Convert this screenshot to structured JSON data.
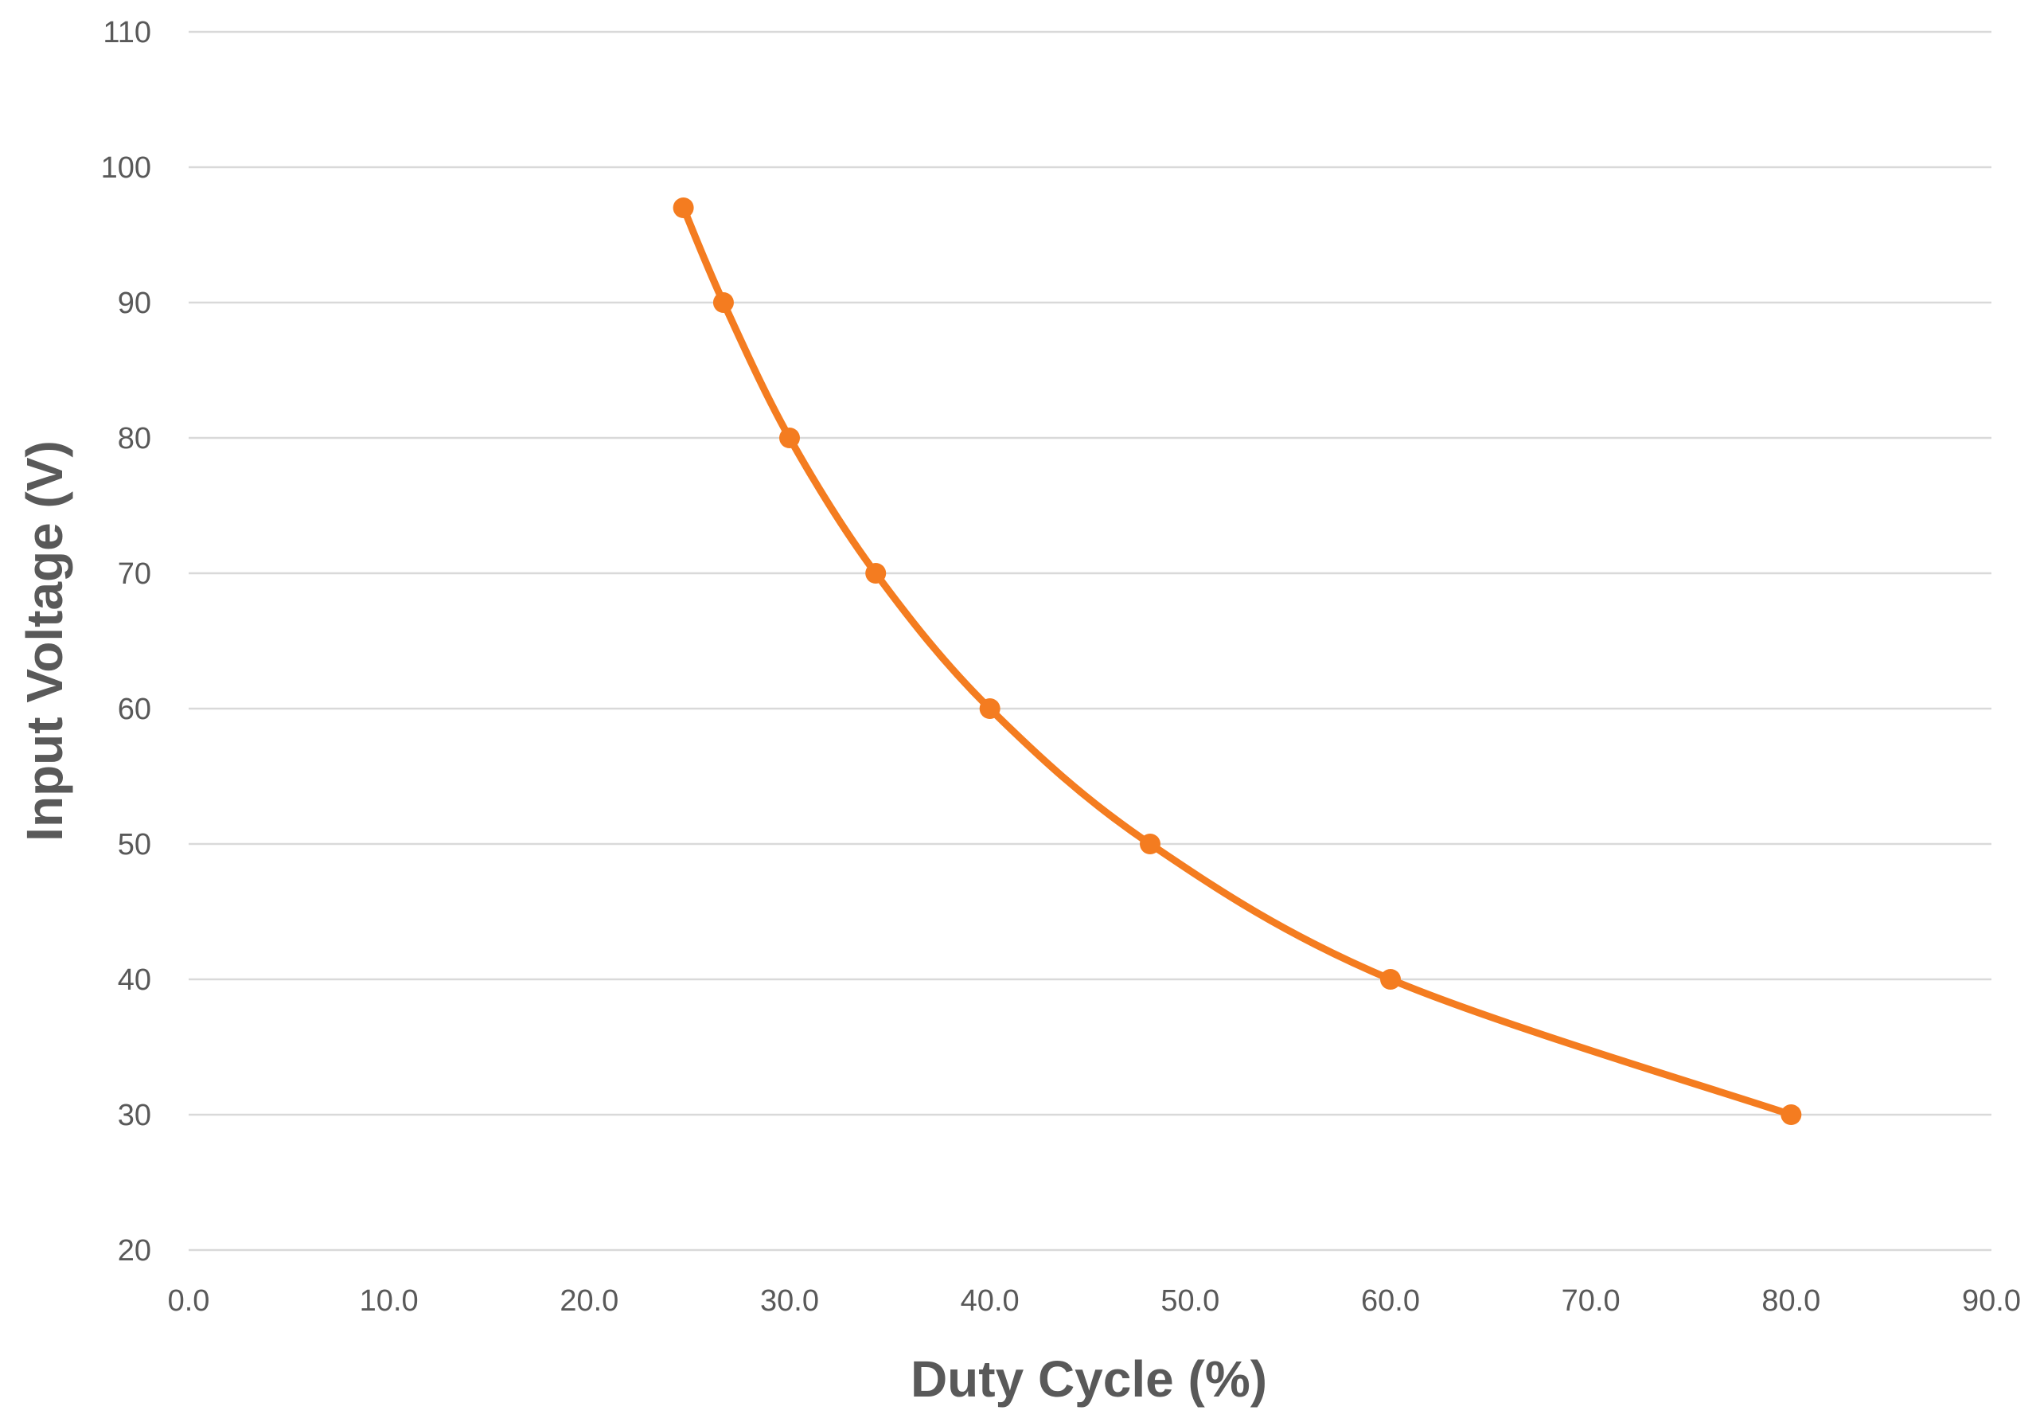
{
  "chart_data": {
    "type": "scatter",
    "title": "",
    "xlabel": "Duty Cycle (%)",
    "ylabel": "Input Voltage (V)",
    "xlim": [
      0,
      90
    ],
    "ylim": [
      20,
      110
    ],
    "x_ticks": [
      "0.0",
      "10.0",
      "20.0",
      "30.0",
      "40.0",
      "50.0",
      "60.0",
      "70.0",
      "80.0",
      "90.0"
    ],
    "y_ticks": [
      "20",
      "30",
      "40",
      "50",
      "60",
      "70",
      "80",
      "90",
      "100",
      "110"
    ],
    "grid": "horizontal",
    "legend": "none",
    "series": [
      {
        "name": "Input Voltage",
        "style": "smooth line with markers",
        "color": "#f47c20",
        "x": [
          24.7,
          26.7,
          30.0,
          34.3,
          40.0,
          48.0,
          60.0,
          80.0
        ],
        "y": [
          97,
          90,
          80,
          70,
          60,
          50,
          40,
          30
        ]
      }
    ]
  }
}
